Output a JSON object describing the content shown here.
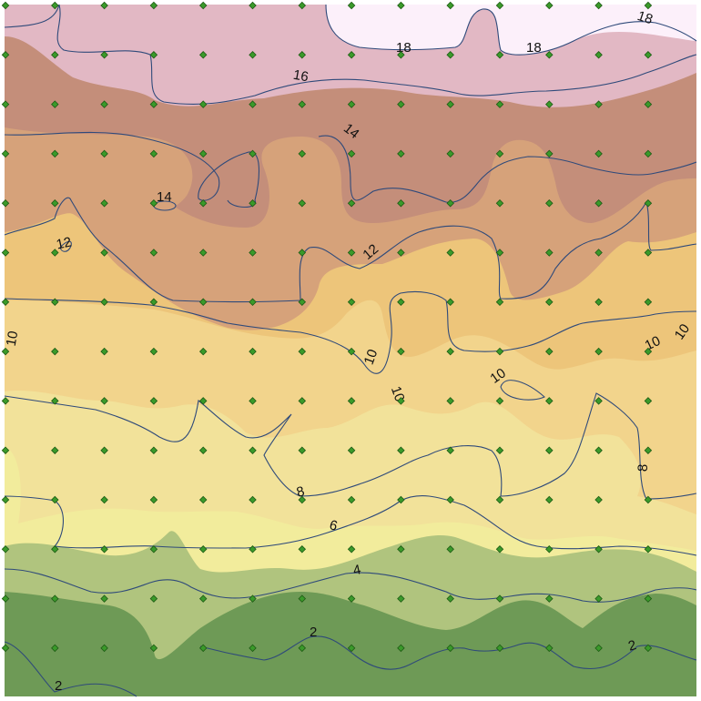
{
  "map": {
    "band_colors": {
      "b0": "#6e9a56",
      "b2": "#b0c47e",
      "b4": "#f2ec9c",
      "b6": "#f2e29a",
      "b8": "#f2d48c",
      "b10": "#edc57a",
      "b12": "#d6a27a",
      "b14": "#c48e7a",
      "b16": "#e2b8c4",
      "b18": "#fcf0fa"
    },
    "isoline_color": "#2f4a7a",
    "point_color": "#3a9a2a",
    "contour_labels": [
      "18",
      "18",
      "18",
      "16",
      "14",
      "14",
      "12",
      "12",
      "10",
      "10",
      "10",
      "10",
      "10",
      "10",
      "8",
      "8",
      "6",
      "4",
      "2",
      "2",
      "2"
    ]
  }
}
